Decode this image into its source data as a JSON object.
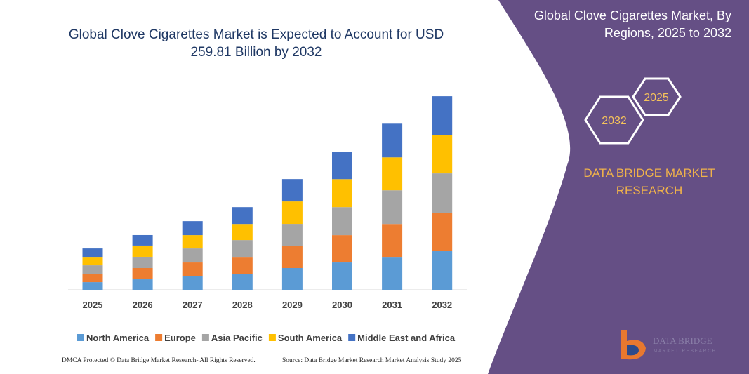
{
  "chart_data": {
    "type": "stacked-bar",
    "title": "Global Clove Cigarettes Market is Expected to Account for USD 259.81 Billion by 2032",
    "categories": [
      "2025",
      "2026",
      "2027",
      "2028",
      "2029",
      "2030",
      "2031",
      "2032"
    ],
    "series": [
      {
        "name": "North America",
        "color": "#5b9bd5",
        "values": [
          10.3,
          14.1,
          17.9,
          21.6,
          29.2,
          36.7,
          44.2,
          51.8
        ]
      },
      {
        "name": "Europe",
        "color": "#ed7d31",
        "values": [
          11.3,
          15.1,
          18.8,
          22.6,
          30.1,
          36.7,
          44.2,
          51.8
        ]
      },
      {
        "name": "Asia Pacific",
        "color": "#a5a5a5",
        "values": [
          11.3,
          15.1,
          18.8,
          22.6,
          29.2,
          37.6,
          45.2,
          52.7
        ]
      },
      {
        "name": "South America",
        "color": "#ffc000",
        "values": [
          11.3,
          15.1,
          17.9,
          21.6,
          30.1,
          37.6,
          44.2,
          51.8
        ]
      },
      {
        "name": "Middle East and Africa",
        "color": "#4472c4",
        "values": [
          11.3,
          14.1,
          18.8,
          22.6,
          30.1,
          36.7,
          45.2,
          51.8
        ]
      }
    ],
    "ylim": [
      0,
      260
    ]
  },
  "side_panel": {
    "title": "Global Clove Cigarettes Market, By Regions, 2025 to 2032",
    "hexagons": [
      "2032",
      "2025"
    ],
    "brand": "DATA BRIDGE MARKET RESEARCH"
  },
  "logo": {
    "name": "DATA BRIDGE",
    "tagline": "MARKET RESEARCH"
  },
  "footer": {
    "left": "DMCA Protected © Data Bridge Market Research- All Rights Reserved.",
    "right": "Source: Data Bridge Market Research Market Analysis Study 2025"
  }
}
